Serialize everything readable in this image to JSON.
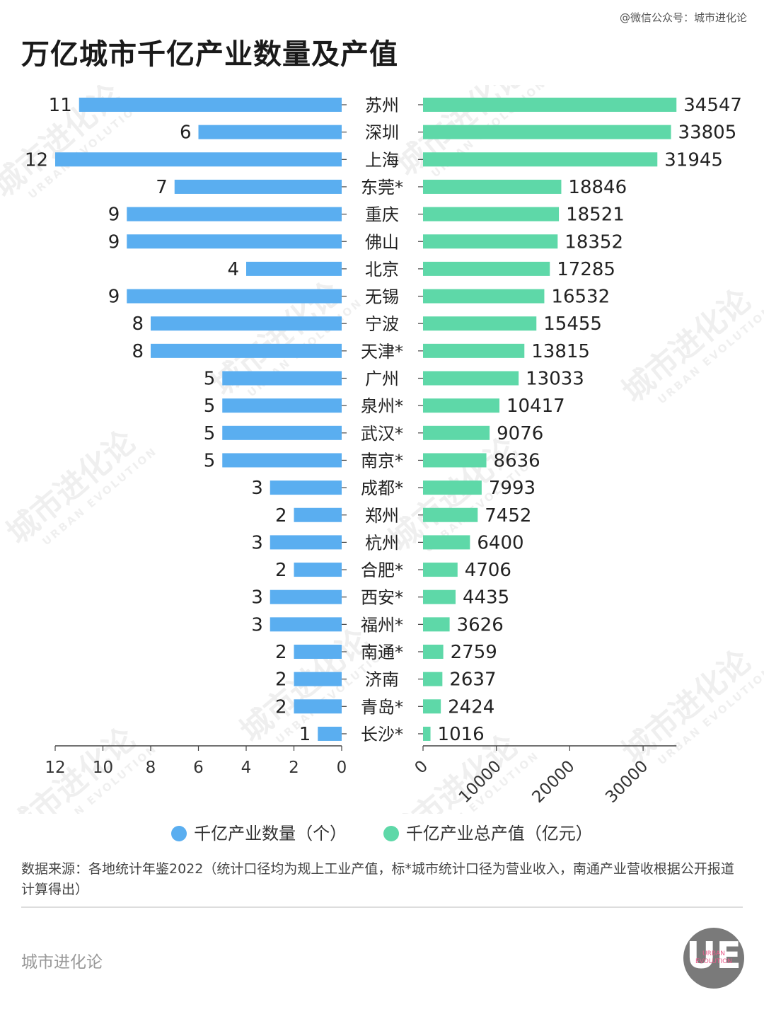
{
  "header": {
    "watermark": "@微信公众号：城市进化论",
    "title": "万亿城市千亿产业数量及产值"
  },
  "colors": {
    "count_bar": "#5aaef0",
    "value_bar": "#5ed8a8"
  },
  "chart_data": {
    "type": "bar",
    "orientation": "horizontal",
    "layout": "back-to-back",
    "categories": [
      "苏州",
      "深圳",
      "上海",
      "东莞*",
      "重庆",
      "佛山",
      "北京",
      "无锡",
      "宁波",
      "天津*",
      "广州",
      "泉州*",
      "武汉*",
      "南京*",
      "成都*",
      "郑州",
      "杭州",
      "合肥*",
      "西安*",
      "福州*",
      "南通*",
      "济南",
      "青岛*",
      "长沙*"
    ],
    "series": [
      {
        "name": "千亿产业数量（个）",
        "side": "left",
        "values": [
          11,
          6,
          12,
          7,
          9,
          9,
          4,
          9,
          8,
          8,
          5,
          5,
          5,
          5,
          3,
          2,
          3,
          2,
          3,
          3,
          2,
          2,
          2,
          1
        ]
      },
      {
        "name": "千亿产业总产值（亿元）",
        "side": "right",
        "values": [
          34547,
          33805,
          31945,
          18846,
          18521,
          18352,
          17285,
          16532,
          15455,
          13815,
          13033,
          10417,
          9076,
          8636,
          7993,
          7452,
          6400,
          4706,
          4435,
          3626,
          2759,
          2637,
          2424,
          1016
        ]
      }
    ],
    "left_axis": {
      "range": [
        0,
        12
      ],
      "ticks": [
        "12",
        "10",
        "8",
        "6",
        "4",
        "2",
        "0"
      ],
      "reversed": true
    },
    "right_axis": {
      "range": [
        0,
        34547
      ],
      "ticks": [
        "0",
        "10000",
        "20000",
        "30000"
      ]
    },
    "legend_position": "bottom",
    "grid": false
  },
  "legend": {
    "count_label": "千亿产业数量（个）",
    "value_label": "千亿产业总产值（亿元）"
  },
  "footer": {
    "source": "数据来源：各地统计年鉴2022（统计口径均为规上工业产值，标*城市统计口径为营业收入，南通产业营收根据公开报道计算得出）",
    "brand": "城市进化论"
  },
  "watermark": {
    "main": "城市进化论",
    "sub": "URBAN EVOLUTION"
  },
  "logo": {
    "mark": "UE",
    "sub": "URBAN EVOLUTION"
  }
}
